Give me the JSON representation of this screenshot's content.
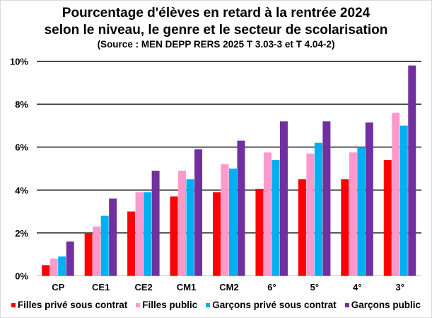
{
  "chart_data": {
    "type": "bar",
    "title": "Pourcentage d'élèves en retard à la rentrée 2024",
    "subtitle": "selon le niveau, le genre et le secteur de scolarisation",
    "source": "(Source : MEN DEPP RERS 2025 T 3.03-3 et T 4.04-2)",
    "categories": [
      "CP",
      "CE1",
      "CE2",
      "CM1",
      "CM2",
      "6°",
      "5°",
      "4°",
      "3°"
    ],
    "ylim": [
      0,
      10
    ],
    "yticks": [
      0,
      2,
      4,
      6,
      8,
      10
    ],
    "ytick_labels": [
      "0%",
      "2%",
      "4%",
      "6%",
      "8%",
      "10%"
    ],
    "grid": true,
    "legend_position": "bottom",
    "series": [
      {
        "name": "Filles privé sous contrat",
        "color": "#ff0000",
        "values": [
          0.5,
          2.0,
          3.0,
          3.7,
          3.9,
          4.05,
          4.5,
          4.5,
          5.4
        ]
      },
      {
        "name": "Filles public",
        "color": "#ff99cc",
        "values": [
          0.8,
          2.3,
          3.9,
          4.9,
          5.2,
          5.75,
          5.7,
          5.75,
          7.6
        ]
      },
      {
        "name": "Garçons privé sous contrat",
        "color": "#00b0f0",
        "values": [
          0.9,
          2.8,
          3.9,
          4.5,
          5.0,
          5.4,
          6.2,
          6.0,
          7.0
        ]
      },
      {
        "name": "Garçons public",
        "color": "#7030a0",
        "values": [
          1.6,
          3.6,
          4.9,
          5.9,
          6.3,
          7.2,
          7.2,
          7.15,
          9.8
        ]
      }
    ]
  }
}
